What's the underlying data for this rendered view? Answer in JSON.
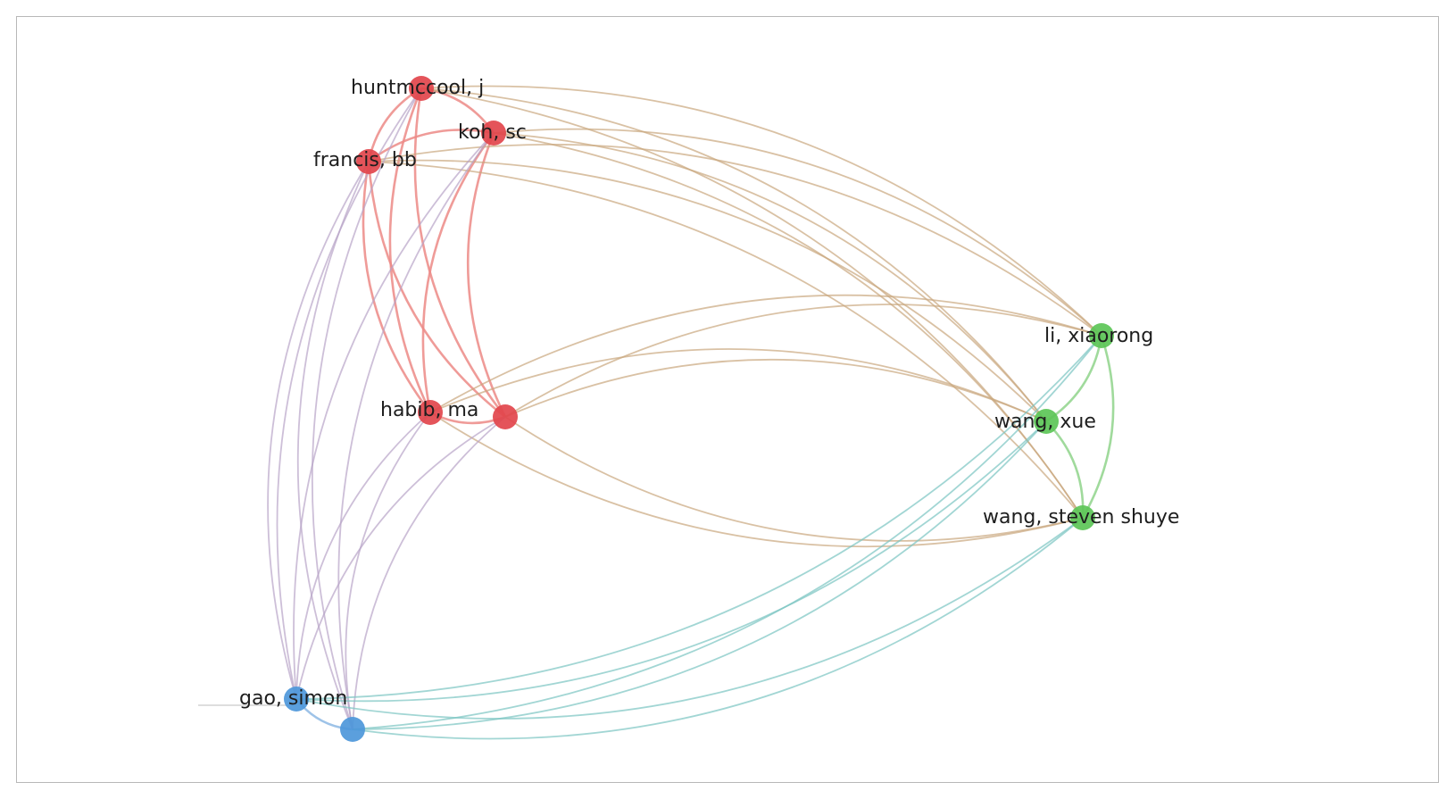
{
  "network": {
    "nodes": [
      {
        "id": "huntmccool",
        "label": "huntmccool, j",
        "cluster": "red"
      },
      {
        "id": "koh",
        "label": "koh, sc",
        "cluster": "red"
      },
      {
        "id": "francis",
        "label": "francis, bb",
        "cluster": "red"
      },
      {
        "id": "habib",
        "label": "habib, ma",
        "cluster": "red"
      },
      {
        "id": "red5",
        "label": "",
        "cluster": "red"
      },
      {
        "id": "li",
        "label": "li, xiaorong",
        "cluster": "green"
      },
      {
        "id": "wangxue",
        "label": "wang, xue",
        "cluster": "green"
      },
      {
        "id": "wangsteven",
        "label": "wang, steven shuye",
        "cluster": "green"
      },
      {
        "id": "gao",
        "label": "gao, simon",
        "cluster": "blue"
      },
      {
        "id": "blue2",
        "label": "",
        "cluster": "blue"
      }
    ],
    "cluster_colors": {
      "red": "#e2454c",
      "green": "#5cc557",
      "blue": "#4d97da"
    },
    "edge_colors": {
      "red": "#ec8a86",
      "green": "#8fd38b",
      "blue": "#8db8e4",
      "red-green": "#c9a77e",
      "red-blue": "#b8a4c8",
      "green-blue": "#7ac5c2"
    },
    "edges": [
      [
        "huntmccool",
        "koh"
      ],
      [
        "huntmccool",
        "francis"
      ],
      [
        "koh",
        "francis"
      ],
      [
        "huntmccool",
        "habib"
      ],
      [
        "huntmccool",
        "red5"
      ],
      [
        "koh",
        "habib"
      ],
      [
        "koh",
        "red5"
      ],
      [
        "francis",
        "habib"
      ],
      [
        "francis",
        "red5"
      ],
      [
        "habib",
        "red5"
      ],
      [
        "li",
        "wangxue"
      ],
      [
        "li",
        "wangsteven"
      ],
      [
        "wangxue",
        "wangsteven"
      ],
      [
        "gao",
        "blue2"
      ],
      [
        "huntmccool",
        "li"
      ],
      [
        "huntmccool",
        "wangxue"
      ],
      [
        "huntmccool",
        "wangsteven"
      ],
      [
        "koh",
        "li"
      ],
      [
        "koh",
        "wangxue"
      ],
      [
        "koh",
        "wangsteven"
      ],
      [
        "francis",
        "li"
      ],
      [
        "francis",
        "wangxue"
      ],
      [
        "francis",
        "wangsteven"
      ],
      [
        "habib",
        "li"
      ],
      [
        "habib",
        "wangxue"
      ],
      [
        "habib",
        "wangsteven"
      ],
      [
        "red5",
        "li"
      ],
      [
        "red5",
        "wangxue"
      ],
      [
        "red5",
        "wangsteven"
      ],
      [
        "gao",
        "huntmccool"
      ],
      [
        "gao",
        "francis"
      ],
      [
        "gao",
        "habib"
      ],
      [
        "gao",
        "koh"
      ],
      [
        "gao",
        "red5"
      ],
      [
        "blue2",
        "huntmccool"
      ],
      [
        "blue2",
        "koh"
      ],
      [
        "blue2",
        "francis"
      ],
      [
        "blue2",
        "habib"
      ],
      [
        "blue2",
        "red5"
      ],
      [
        "gao",
        "li"
      ],
      [
        "gao",
        "wangxue"
      ],
      [
        "gao",
        "wangsteven"
      ],
      [
        "blue2",
        "li"
      ],
      [
        "blue2",
        "wangxue"
      ],
      [
        "blue2",
        "wangsteven"
      ]
    ]
  }
}
